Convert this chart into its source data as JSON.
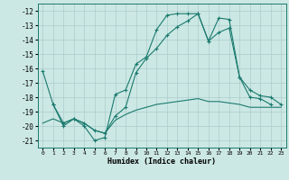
{
  "line1_x": [
    0,
    1,
    2,
    3,
    4,
    5,
    6,
    7,
    8,
    9,
    10,
    11,
    12,
    13,
    14,
    15,
    16,
    17,
    18,
    19,
    20,
    21,
    22
  ],
  "line1_y": [
    -16.2,
    -18.5,
    -20.0,
    -19.5,
    -20.0,
    -21.0,
    -20.8,
    -17.8,
    -17.5,
    -15.7,
    -15.2,
    -13.3,
    -12.3,
    -12.2,
    -12.2,
    -12.2,
    -14.1,
    -12.5,
    -12.6,
    -16.6,
    -18.0,
    -18.1,
    -18.5
  ],
  "line2_x": [
    1,
    2,
    3,
    4,
    5,
    6,
    7,
    8,
    9,
    10,
    11,
    12,
    13,
    14,
    15,
    16,
    17,
    18,
    19,
    20,
    21,
    22,
    23
  ],
  "line2_y": [
    -18.5,
    -19.8,
    -19.5,
    -19.8,
    -20.3,
    -20.5,
    -19.3,
    -18.7,
    -16.3,
    -15.3,
    -14.6,
    -13.7,
    -13.1,
    -12.7,
    -12.2,
    -14.1,
    -13.5,
    -13.2,
    -16.6,
    -17.5,
    -17.9,
    -18.0,
    -18.5
  ],
  "line3_x": [
    0,
    1,
    2,
    3,
    4,
    5,
    6,
    7,
    8,
    9,
    10,
    11,
    12,
    13,
    14,
    15,
    16,
    17,
    18,
    19,
    20,
    21,
    22,
    23
  ],
  "line3_y": [
    -19.8,
    -19.5,
    -19.8,
    -19.5,
    -19.8,
    -20.3,
    -20.5,
    -19.6,
    -19.2,
    -18.9,
    -18.7,
    -18.5,
    -18.4,
    -18.3,
    -18.2,
    -18.1,
    -18.3,
    -18.3,
    -18.4,
    -18.5,
    -18.7,
    -18.7,
    -18.7,
    -18.7
  ],
  "line_color": "#1a7a6e",
  "bg_color": "#cce8e4",
  "grid_color": "#aacccc",
  "xlabel": "Humidex (Indice chaleur)",
  "ylim": [
    -21.5,
    -11.5
  ],
  "xlim": [
    -0.5,
    23.5
  ],
  "yticks": [
    -12,
    -13,
    -14,
    -15,
    -16,
    -17,
    -18,
    -19,
    -20,
    -21
  ],
  "xticks": [
    0,
    1,
    2,
    3,
    4,
    5,
    6,
    7,
    8,
    9,
    10,
    11,
    12,
    13,
    14,
    15,
    16,
    17,
    18,
    19,
    20,
    21,
    22,
    23
  ]
}
